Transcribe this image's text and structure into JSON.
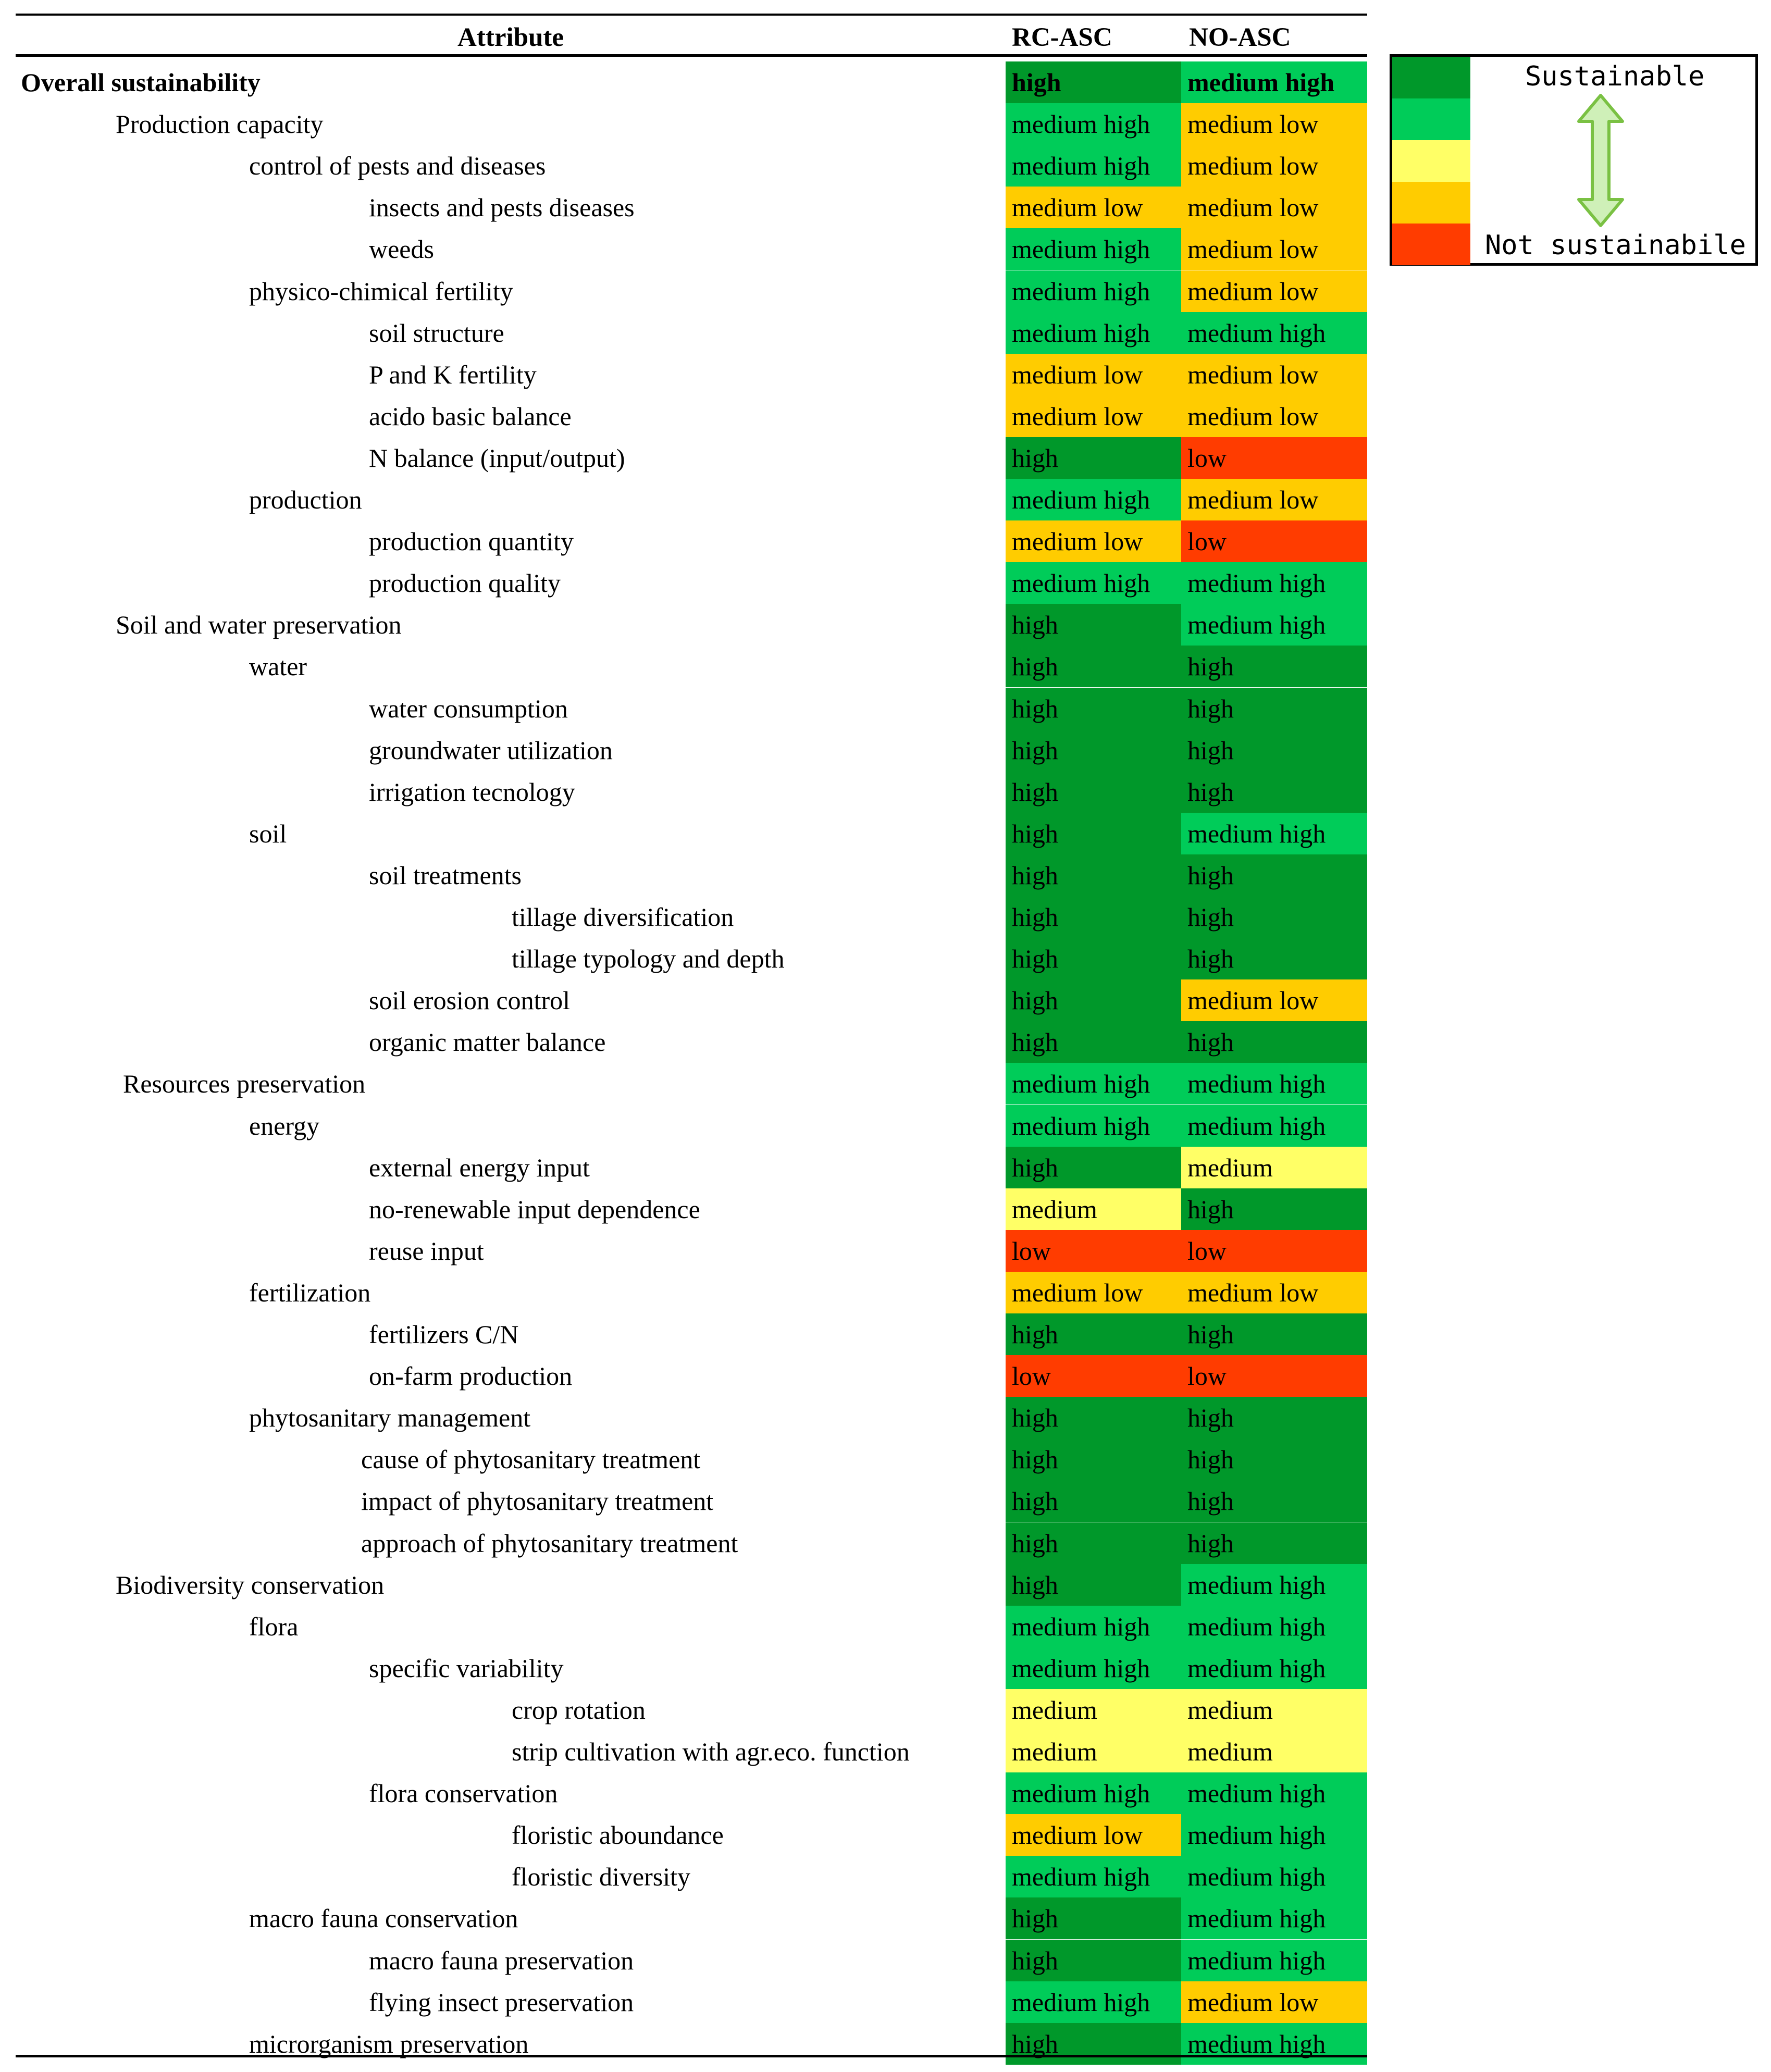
{
  "colors": {
    "high": "#00982A",
    "medium high": "#00CC59",
    "medium": "#FFFF66",
    "medium low": "#FFCC00",
    "low": "#FF3C00"
  },
  "table": {
    "headers": [
      "Attribute",
      "RC-ASC",
      "NO-ASC"
    ],
    "rows": [
      {
        "label": "Overall sustainability",
        "level": 0,
        "bold": true,
        "rc": "high",
        "no": "medium high"
      },
      {
        "label": "Production capacity",
        "level": 1,
        "rc": "medium high",
        "no": "medium low"
      },
      {
        "label": "control of pests and diseases",
        "level": 2,
        "rc": "medium high",
        "no": "medium low"
      },
      {
        "label": "insects and pests diseases",
        "level": 3,
        "rc": "medium low",
        "no": "medium low"
      },
      {
        "label": "weeds",
        "level": 3,
        "rc": "medium high",
        "no": "medium low"
      },
      {
        "label": "physico-chimical fertility",
        "level": 2,
        "rc": "medium high",
        "no": "medium low"
      },
      {
        "label": "soil structure",
        "level": 3,
        "rc": "medium high",
        "no": "medium high"
      },
      {
        "label": "P and K fertility",
        "level": 3,
        "rc": "medium low",
        "no": "medium low"
      },
      {
        "label": "acido basic balance",
        "level": 3,
        "rc": "medium low",
        "no": "medium low"
      },
      {
        "label": "N balance (input/output)",
        "level": 3,
        "rc": "high",
        "no": "low"
      },
      {
        "label": "production",
        "level": 2,
        "rc": "medium high",
        "no": "medium low"
      },
      {
        "label": "production quantity",
        "level": 3,
        "rc": "medium low",
        "no": "low"
      },
      {
        "label": "production quality",
        "level": 3,
        "rc": "medium high",
        "no": "medium high"
      },
      {
        "label": "Soil and water preservation",
        "level": 1,
        "rc": "high",
        "no": "medium high"
      },
      {
        "label": "water",
        "level": 2,
        "rc": "high",
        "no": "high"
      },
      {
        "label": "water consumption",
        "level": 3,
        "rc": "high",
        "no": "high"
      },
      {
        "label": "groundwater utilization",
        "level": 3,
        "rc": "high",
        "no": "high"
      },
      {
        "label": "irrigation tecnology",
        "level": 3,
        "rc": "high",
        "no": "high"
      },
      {
        "label": "soil",
        "level": 2,
        "rc": "high",
        "no": "medium high"
      },
      {
        "label": "soil treatments",
        "level": 3,
        "rc": "high",
        "no": "high"
      },
      {
        "label": "tillage diversification",
        "level": 4,
        "rc": "high",
        "no": "high"
      },
      {
        "label": "tillage typology and  depth",
        "level": 4,
        "rc": "high",
        "no": "high"
      },
      {
        "label": "soil erosion control",
        "level": 3,
        "rc": "high",
        "no": "medium low"
      },
      {
        "label": "organic matter balance",
        "level": 3,
        "rc": "high",
        "no": "high"
      },
      {
        "label": "Resources preservation",
        "level": 1.1,
        "rc": "medium high",
        "no": "medium high"
      },
      {
        "label": "energy",
        "level": 2,
        "rc": "medium high",
        "no": "medium high"
      },
      {
        "label": "external energy input",
        "level": 3,
        "rc": "high",
        "no": "medium"
      },
      {
        "label": "no-renewable input dependence",
        "level": 3,
        "rc": "medium",
        "no": "high"
      },
      {
        "label": "reuse input",
        "level": 3,
        "rc": "low",
        "no": "low"
      },
      {
        "label": "fertilization",
        "level": 2,
        "rc": "medium low",
        "no": "medium low"
      },
      {
        "label": "fertilizers C/N",
        "level": 3,
        "rc": "high",
        "no": "high"
      },
      {
        "label": "on-farm production",
        "level": 3,
        "rc": "low",
        "no": "low"
      },
      {
        "label": "phytosanitary management",
        "level": 2,
        "rc": "high",
        "no": "high"
      },
      {
        "label": "cause of phytosanitary treatment",
        "level": 2.9,
        "rc": "high",
        "no": "high"
      },
      {
        "label": "impact of phytosanitary treatment",
        "level": 2.9,
        "rc": "high",
        "no": "high"
      },
      {
        "label": "approach of phytosanitary treatment",
        "level": 2.9,
        "rc": "high",
        "no": "high"
      },
      {
        "label": "Biodiversity conservation",
        "level": 1,
        "rc": "high",
        "no": "medium high"
      },
      {
        "label": "flora",
        "level": 2,
        "rc": "medium high",
        "no": "medium high"
      },
      {
        "label": "specific variability",
        "level": 3,
        "rc": "medium high",
        "no": "medium high"
      },
      {
        "label": "crop rotation",
        "level": 4,
        "rc": "medium",
        "no": "medium"
      },
      {
        "label": "strip cultivation with agr.eco. function",
        "level": 4,
        "rc": "medium",
        "no": "medium"
      },
      {
        "label": "flora conservation",
        "level": 3,
        "rc": "medium high",
        "no": "medium high"
      },
      {
        "label": "floristic aboundance",
        "level": 4,
        "rc": "medium low",
        "no": "medium high"
      },
      {
        "label": "floristic diversity",
        "level": 4,
        "rc": "medium high",
        "no": "medium high"
      },
      {
        "label": "macro fauna conservation",
        "level": 2,
        "rc": "high",
        "no": "medium high"
      },
      {
        "label": "macro fauna preservation",
        "level": 3,
        "rc": "high",
        "no": "medium high"
      },
      {
        "label": "flying insect preservation",
        "level": 3,
        "rc": "medium high",
        "no": "medium low"
      },
      {
        "label": "microrganism preservation",
        "level": 2,
        "rc": "high",
        "no": "medium high"
      }
    ]
  },
  "legend": {
    "top_label": "Sustainable",
    "bottom_label": "Not sustainabile",
    "swatches": [
      "#00982A",
      "#00CC59",
      "#FFFF66",
      "#FFCC00",
      "#FF3C00"
    ]
  }
}
